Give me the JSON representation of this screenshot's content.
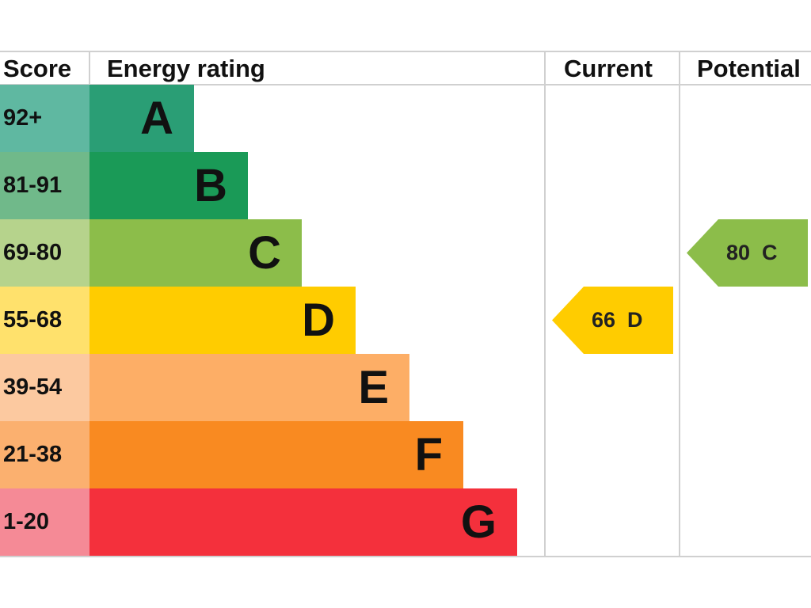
{
  "chart_data": {
    "type": "table",
    "headers": {
      "score": "Score",
      "rating": "Energy rating",
      "current": "Current",
      "potential": "Potential"
    },
    "bands": [
      {
        "range": "92+",
        "letter": "A",
        "color": "#2a9e75",
        "tint": "#5fb8a1"
      },
      {
        "range": "81-91",
        "letter": "B",
        "color": "#1a9a57",
        "tint": "#70b98a"
      },
      {
        "range": "69-80",
        "letter": "C",
        "color": "#8cbd4a",
        "tint": "#b6d38c"
      },
      {
        "range": "55-68",
        "letter": "D",
        "color": "#ffcc00",
        "tint": "#ffe16c"
      },
      {
        "range": "39-54",
        "letter": "E",
        "color": "#fdae66",
        "tint": "#fcc9a0"
      },
      {
        "range": "21-38",
        "letter": "F",
        "color": "#f98a21",
        "tint": "#fbb06f"
      },
      {
        "range": "1-20",
        "letter": "G",
        "color": "#f4303c",
        "tint": "#f58a96"
      }
    ],
    "current": {
      "score": 66,
      "letter": "D",
      "label": "66  D",
      "color": "#ffcc00"
    },
    "potential": {
      "score": 80,
      "letter": "C",
      "label": "80  C",
      "color": "#8cbd4a"
    }
  }
}
